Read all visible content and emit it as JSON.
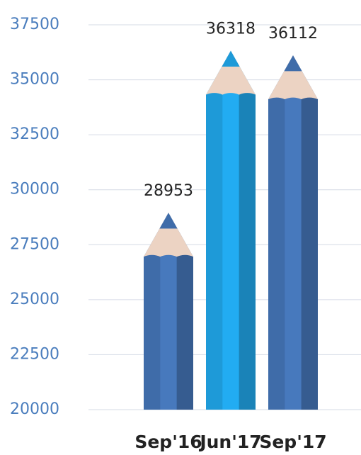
{
  "chart_data": {
    "type": "bar",
    "categories": [
      "Sep'16",
      "Jun'17",
      "Sep'17"
    ],
    "values": [
      28953,
      36318,
      36112
    ],
    "colors": [
      "#3f6ca9",
      "#1e9ad8",
      "#3f6ca9"
    ],
    "ylim": [
      20000,
      37500
    ],
    "yticks": [
      20000,
      22500,
      25000,
      27500,
      30000,
      32500,
      35000,
      37500
    ],
    "grid": true
  }
}
